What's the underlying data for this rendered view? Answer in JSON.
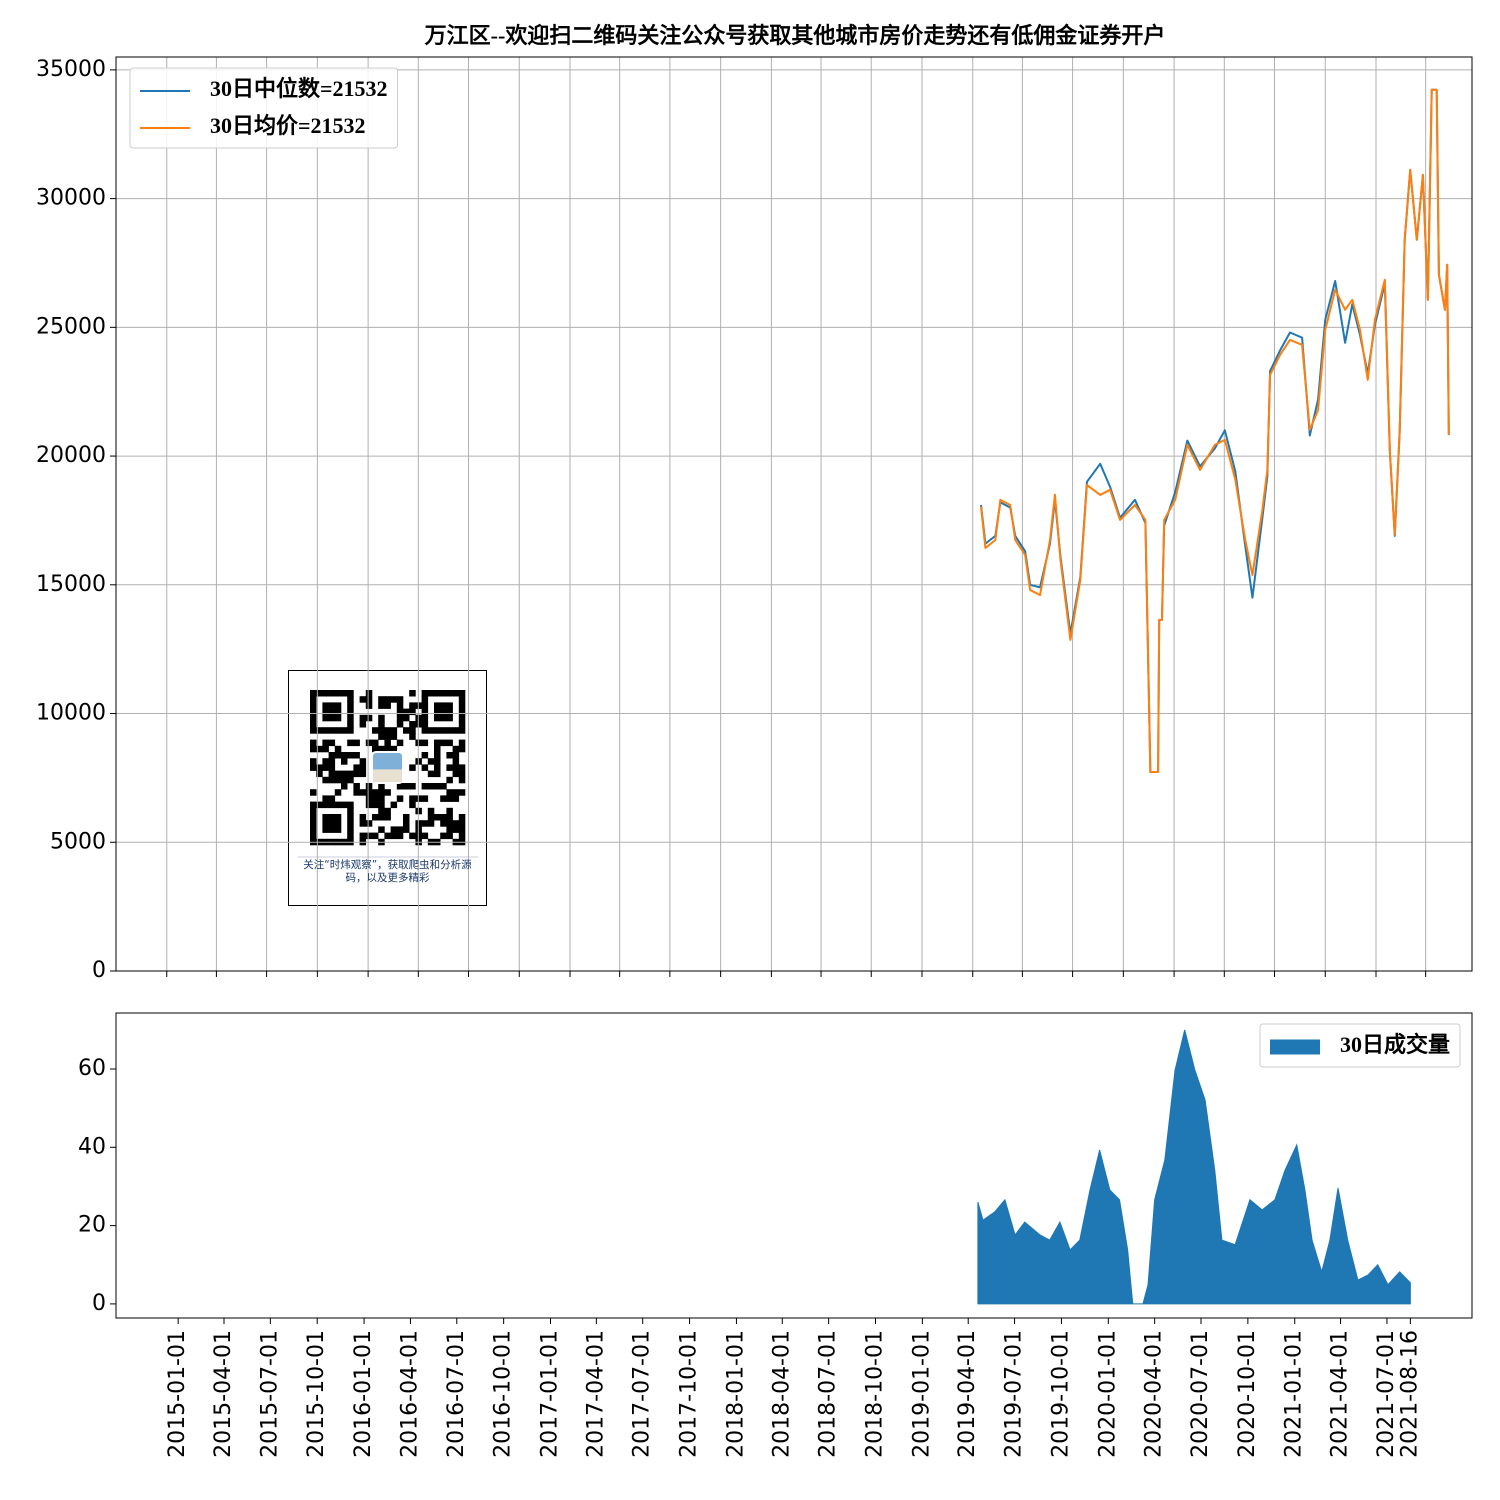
{
  "chart_data": [
    {
      "type": "line",
      "title": "万江区--欢迎扫二维码关注公众号获取其他城市房价走势还有低佣金证券开户",
      "x": [
        "2019-01-16",
        "2019-01-24",
        "2019-02-11",
        "2019-02-20",
        "2019-03-10",
        "2019-03-19",
        "2019-04-06",
        "2019-04-15",
        "2019-05-03",
        "2019-05-21",
        "2019-05-30",
        "2019-06-09",
        "2019-06-27",
        "2019-07-15",
        "2019-07-27",
        "2019-08-20",
        "2019-09-07",
        "2019-09-25",
        "2019-10-22",
        "2019-11-10",
        "2019-11-19",
        "2019-12-03",
        "2019-12-05",
        "2019-12-10",
        "2019-12-14",
        "2020-01-03",
        "2020-01-25",
        "2020-02-17",
        "2020-03-15",
        "2020-04-02",
        "2020-04-21",
        "2020-05-09",
        "2020-05-22",
        "2020-06-09",
        "2020-06-18",
        "2020-06-23",
        "2020-07-11",
        "2020-07-29",
        "2020-08-20",
        "2020-09-03",
        "2020-09-18",
        "2020-10-01",
        "2020-10-19",
        "2020-11-06",
        "2020-11-19",
        "2020-12-03",
        "2020-12-17",
        "2020-12-30",
        "2021-01-17",
        "2021-01-26",
        "2021-02-04",
        "2021-02-13",
        "2021-02-22",
        "2021-03-04",
        "2021-03-16",
        "2021-03-27",
        "2021-04-05",
        "2021-04-12",
        "2021-04-21",
        "2021-04-25",
        "2021-05-06",
        "2021-05-10",
        "2021-05-13"
      ],
      "series": [
        {
          "name": "30日中位数=21532",
          "color": "#1f77b4",
          "values": [
            18100,
            16600,
            16900,
            18200,
            18000,
            16900,
            16300,
            15000,
            14900,
            16600,
            18300,
            16100,
            13100,
            15300,
            19000,
            19700,
            18800,
            17600,
            18300,
            17400,
            7730,
            7730,
            13640,
            13640,
            17300,
            18600,
            20600,
            19600,
            20300,
            21000,
            19400,
            16500,
            14500,
            17600,
            19200,
            23300,
            24100,
            24800,
            24600,
            20800,
            22200,
            25300,
            26800,
            24400,
            25900,
            24700,
            23200,
            25100,
            26700,
            20200,
            16900,
            21000,
            28400,
            31120,
            28400,
            30920,
            26070,
            34230,
            34230,
            27040,
            25680,
            27430,
            20820
          ]
        },
        {
          "name": "30日均价=21532",
          "color": "#ff7f0e",
          "values": [
            18030,
            16430,
            16740,
            18300,
            18100,
            16740,
            16160,
            14800,
            14600,
            16740,
            18500,
            15970,
            12860,
            15190,
            18880,
            18490,
            18690,
            17520,
            18100,
            17520,
            7730,
            7730,
            13640,
            13640,
            17520,
            18300,
            20440,
            19460,
            20440,
            20630,
            19080,
            16740,
            15380,
            17910,
            19460,
            23150,
            23930,
            24510,
            24320,
            21020,
            21790,
            24900,
            26460,
            25680,
            26070,
            24900,
            22960,
            25290,
            26850,
            20240,
            16940,
            21020,
            28400,
            31120,
            28400,
            30920,
            26070,
            34230,
            34230,
            27040,
            25680,
            27430,
            20820
          ]
        }
      ],
      "xlim": [
        "2014-10-01",
        "2021-06-24"
      ],
      "xticks": [
        "2015-01-01",
        "2015-04-01",
        "2015-07-01",
        "2015-10-01",
        "2016-01-01",
        "2016-04-01",
        "2016-07-01",
        "2016-10-01",
        "2017-01-01",
        "2017-04-01",
        "2017-07-01",
        "2017-10-01",
        "2018-01-01",
        "2018-04-01",
        "2018-07-01",
        "2018-10-01",
        "2019-01-01",
        "2019-04-01",
        "2019-07-01",
        "2019-10-01",
        "2020-01-01",
        "2020-04-01",
        "2020-07-01",
        "2020-10-01",
        "2021-01-01",
        "2021-04-01"
      ],
      "xtick_labels": false,
      "ylim": [
        0,
        35500
      ],
      "yticks": [
        0,
        5000,
        10000,
        15000,
        20000,
        25000,
        30000,
        35000
      ],
      "grid": true,
      "legend": "upper left",
      "annotation": "关注“时炜观察”，获取爬虫和分析源码，以及更多精彩"
    },
    {
      "type": "area",
      "x": [
        "2019-04-20",
        "2019-04-30",
        "2019-05-23",
        "2019-06-12",
        "2019-07-02",
        "2019-07-21",
        "2019-08-20",
        "2019-09-08",
        "2019-09-28",
        "2019-10-18",
        "2019-11-06",
        "2019-11-26",
        "2019-12-15",
        "2020-01-04",
        "2020-01-23",
        "2020-02-08",
        "2020-02-18",
        "2020-03-09",
        "2020-03-19",
        "2020-04-01",
        "2020-04-21",
        "2020-05-11",
        "2020-05-30",
        "2020-06-19",
        "2020-07-09",
        "2020-07-28",
        "2020-08-11",
        "2020-09-06",
        "2020-10-05",
        "2020-10-29",
        "2020-11-23",
        "2020-12-13",
        "2021-01-05",
        "2021-01-21",
        "2021-02-04",
        "2021-02-23",
        "2021-03-11",
        "2021-03-27",
        "2021-04-15",
        "2021-05-05",
        "2021-05-25",
        "2021-06-13",
        "2021-07-03",
        "2021-07-26",
        "2021-08-16"
      ],
      "series": [
        {
          "name": "30日成交量",
          "color": "#1f77b4",
          "values": [
            26,
            21.4,
            23.5,
            26.6,
            17.6,
            20.9,
            17.6,
            16.3,
            20.9,
            13.8,
            16.3,
            29.1,
            39.3,
            29.1,
            26.6,
            13.8,
            0,
            0,
            4.9,
            26.6,
            36.8,
            59.7,
            70,
            59.7,
            52.1,
            34.2,
            16.3,
            15.1,
            26.6,
            24,
            26.6,
            34.2,
            40.6,
            29.1,
            16.3,
            8.2,
            16.3,
            29.6,
            16.3,
            6.1,
            7.4,
            10,
            4.9,
            8.2,
            5.4
          ]
        }
      ],
      "xlim": [
        "2014-09-01",
        "2021-12-15"
      ],
      "xticks": [
        "2015-01-01",
        "2015-04-01",
        "2015-07-01",
        "2015-10-01",
        "2016-01-01",
        "2016-04-01",
        "2016-07-01",
        "2016-10-01",
        "2017-01-01",
        "2017-04-01",
        "2017-07-01",
        "2017-10-01",
        "2018-01-01",
        "2018-04-01",
        "2018-07-01",
        "2018-10-01",
        "2019-01-01",
        "2019-04-01",
        "2019-07-01",
        "2019-10-01",
        "2020-01-01",
        "2020-04-01",
        "2020-07-01",
        "2020-10-01",
        "2021-01-01",
        "2021-04-01",
        "2021-07-01",
        "2021-08-16"
      ],
      "xtick_labels": true,
      "ylim": [
        -3.6,
        74.3
      ],
      "yticks": [
        0,
        20,
        40,
        60
      ],
      "grid": false,
      "legend": "upper right"
    }
  ]
}
